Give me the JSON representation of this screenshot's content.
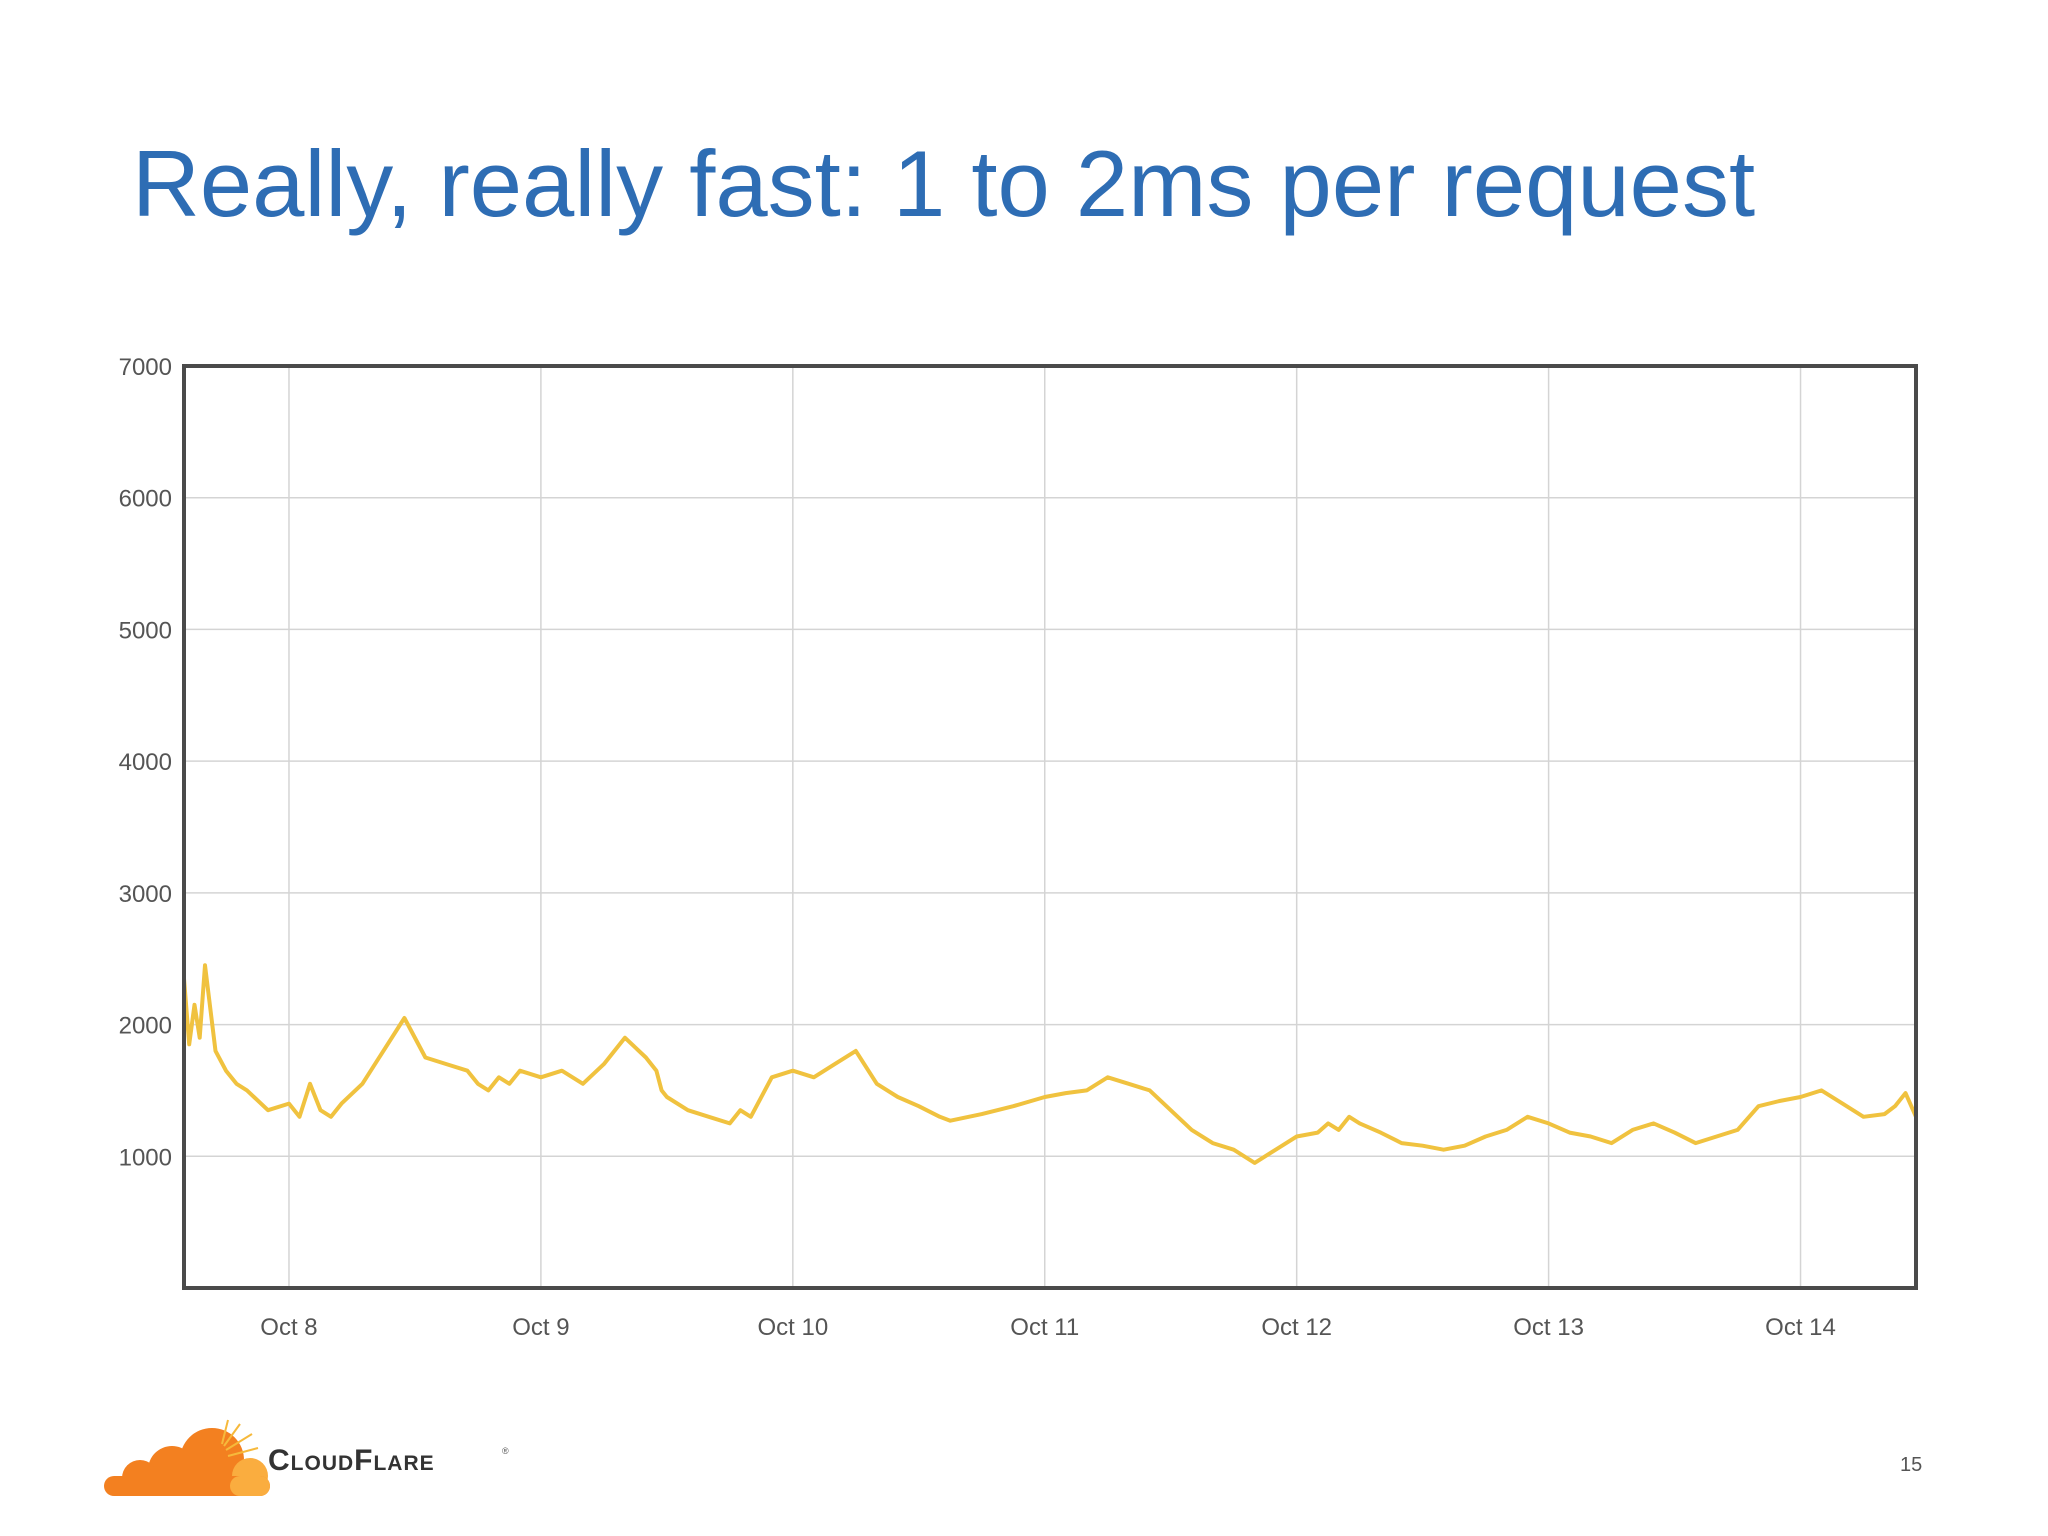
{
  "slide": {
    "title": "Really, really fast: 1 to 2ms per request",
    "page_number": "15",
    "logo_text": "CloudFlare",
    "logo_trademark": "®"
  },
  "colors": {
    "title": "#2e6db4",
    "series": "#f0c23f",
    "grid": "#d4d4d4",
    "frame": "#4a4a4a",
    "logo_orange": "#f38020",
    "logo_light_orange": "#faad3f"
  },
  "icons": {
    "logo": "cloudflare-cloud-logo"
  },
  "chart_data": {
    "type": "line",
    "title": "",
    "xlabel": "",
    "ylabel": "",
    "ylim": [
      0,
      7000
    ],
    "xlim": [
      "2013-10-07 14:00",
      "2013-10-14 11:00"
    ],
    "x_tick_labels": [
      "Oct 8",
      "Oct 9",
      "Oct 10",
      "Oct 11",
      "Oct 12",
      "Oct 13",
      "Oct 14"
    ],
    "y_ticks": [
      1000,
      2000,
      3000,
      4000,
      5000,
      6000,
      7000
    ],
    "grid": true,
    "legend": "none",
    "series": [
      {
        "x": [
          "2013-10-07 14:00",
          "2013-10-07 14:30",
          "2013-10-07 15:00",
          "2013-10-07 15:30",
          "2013-10-07 16:00",
          "2013-10-07 17:00",
          "2013-10-07 18:00",
          "2013-10-07 19:00",
          "2013-10-07 20:00",
          "2013-10-07 22:00",
          "2013-10-08 00:00",
          "2013-10-08 01:00",
          "2013-10-08 02:00",
          "2013-10-08 03:00",
          "2013-10-08 04:00",
          "2013-10-08 05:00",
          "2013-10-08 07:00",
          "2013-10-08 09:00",
          "2013-10-08 11:00",
          "2013-10-08 13:00",
          "2013-10-08 15:00",
          "2013-10-08 17:00",
          "2013-10-08 18:00",
          "2013-10-08 19:00",
          "2013-10-08 20:00",
          "2013-10-08 21:00",
          "2013-10-08 22:00",
          "2013-10-09 00:00",
          "2013-10-09 02:00",
          "2013-10-09 04:00",
          "2013-10-09 06:00",
          "2013-10-09 08:00",
          "2013-10-09 10:00",
          "2013-10-09 11:00",
          "2013-10-09 11:30",
          "2013-10-09 12:00",
          "2013-10-09 14:00",
          "2013-10-09 16:00",
          "2013-10-09 18:00",
          "2013-10-09 19:00",
          "2013-10-09 20:00",
          "2013-10-09 22:00",
          "2013-10-10 00:00",
          "2013-10-10 02:00",
          "2013-10-10 04:00",
          "2013-10-10 06:00",
          "2013-10-10 08:00",
          "2013-10-10 10:00",
          "2013-10-10 12:00",
          "2013-10-10 14:00",
          "2013-10-10 15:00",
          "2013-10-10 18:00",
          "2013-10-10 21:00",
          "2013-10-11 00:00",
          "2013-10-11 02:00",
          "2013-10-11 04:00",
          "2013-10-11 06:00",
          "2013-10-11 08:00",
          "2013-10-11 10:00",
          "2013-10-11 12:00",
          "2013-10-11 14:00",
          "2013-10-11 16:00",
          "2013-10-11 18:00",
          "2013-10-11 20:00",
          "2013-10-11 22:00",
          "2013-10-12 00:00",
          "2013-10-12 02:00",
          "2013-10-12 03:00",
          "2013-10-12 04:00",
          "2013-10-12 05:00",
          "2013-10-12 06:00",
          "2013-10-12 08:00",
          "2013-10-12 10:00",
          "2013-10-12 12:00",
          "2013-10-12 14:00",
          "2013-10-12 16:00",
          "2013-10-12 18:00",
          "2013-10-12 20:00",
          "2013-10-12 22:00",
          "2013-10-13 00:00",
          "2013-10-13 02:00",
          "2013-10-13 04:00",
          "2013-10-13 06:00",
          "2013-10-13 08:00",
          "2013-10-13 10:00",
          "2013-10-13 12:00",
          "2013-10-13 14:00",
          "2013-10-13 16:00",
          "2013-10-13 18:00",
          "2013-10-13 20:00",
          "2013-10-13 22:00",
          "2013-10-14 00:00",
          "2013-10-14 02:00",
          "2013-10-14 04:00",
          "2013-10-14 06:00",
          "2013-10-14 08:00",
          "2013-10-14 09:00",
          "2013-10-14 10:00",
          "2013-10-14 11:00"
        ],
        "values": [
          2350,
          1850,
          2150,
          1900,
          2450,
          1800,
          1650,
          1550,
          1500,
          1350,
          1400,
          1300,
          1550,
          1350,
          1300,
          1400,
          1550,
          1800,
          2050,
          1750,
          1700,
          1650,
          1550,
          1500,
          1600,
          1550,
          1650,
          1600,
          1650,
          1550,
          1700,
          1900,
          1750,
          1650,
          1500,
          1450,
          1350,
          1300,
          1250,
          1350,
          1300,
          1600,
          1650,
          1600,
          1700,
          1800,
          1550,
          1450,
          1380,
          1300,
          1270,
          1320,
          1380,
          1450,
          1480,
          1500,
          1600,
          1550,
          1500,
          1350,
          1200,
          1100,
          1050,
          950,
          1050,
          1150,
          1180,
          1250,
          1200,
          1300,
          1250,
          1180,
          1100,
          1080,
          1050,
          1080,
          1150,
          1200,
          1300,
          1250,
          1180,
          1150,
          1100,
          1200,
          1250,
          1180,
          1100,
          1150,
          1200,
          1380,
          1420,
          1450,
          1500,
          1400,
          1300,
          1320,
          1380,
          1480,
          1300
        ]
      }
    ]
  }
}
